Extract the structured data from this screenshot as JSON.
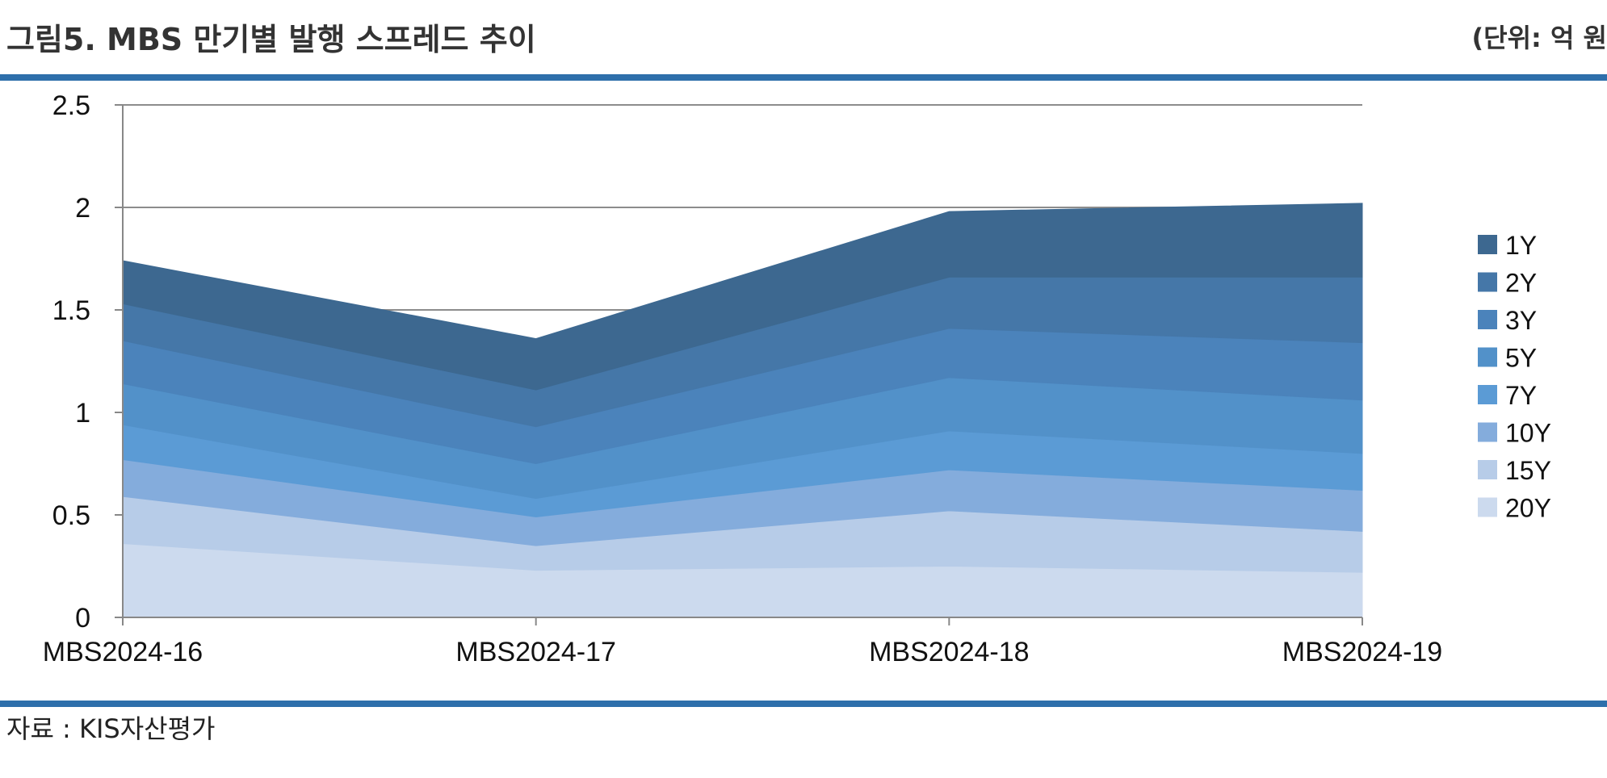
{
  "header": {
    "title": "그림5. MBS 만기별 발행 스프레드 추이",
    "unit": "(단위: 억 원"
  },
  "footer": {
    "source": "자료 : KIS자산평가"
  },
  "colors": {
    "rule": "#2e6fab",
    "axis": "#888888",
    "grid": "#8c8c8c"
  },
  "chart_data": {
    "type": "area",
    "stacked": true,
    "categories": [
      "MBS2024-16",
      "MBS2024-17",
      "MBS2024-18",
      "MBS2024-19"
    ],
    "ylim": [
      0,
      2.5
    ],
    "yticks": [
      0,
      0.5,
      1,
      1.5,
      2,
      2.5
    ],
    "ytick_labels": [
      "0",
      "0.5",
      "1",
      "1.5",
      "2",
      "2.5"
    ],
    "grid": true,
    "legend_position": "right",
    "series": [
      {
        "name": "20Y",
        "color": "#ccdaee",
        "values": [
          0.36,
          0.23,
          0.25,
          0.22
        ]
      },
      {
        "name": "15Y",
        "color": "#b7cce8",
        "values": [
          0.23,
          0.12,
          0.27,
          0.2
        ]
      },
      {
        "name": "10Y",
        "color": "#84acdc",
        "values": [
          0.18,
          0.14,
          0.2,
          0.2
        ]
      },
      {
        "name": "7Y",
        "color": "#5b9bd5",
        "values": [
          0.17,
          0.09,
          0.19,
          0.18
        ]
      },
      {
        "name": "5Y",
        "color": "#5291c9",
        "values": [
          0.2,
          0.17,
          0.26,
          0.26
        ]
      },
      {
        "name": "3Y",
        "color": "#4b83bb",
        "values": [
          0.21,
          0.18,
          0.24,
          0.28
        ]
      },
      {
        "name": "2Y",
        "color": "#4577a8",
        "values": [
          0.18,
          0.18,
          0.25,
          0.32
        ]
      },
      {
        "name": "1Y",
        "color": "#3d6890",
        "values": [
          0.21,
          0.25,
          0.32,
          0.36
        ]
      }
    ]
  }
}
